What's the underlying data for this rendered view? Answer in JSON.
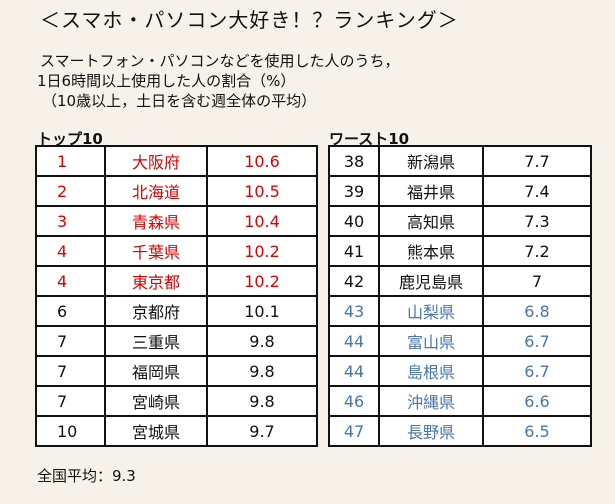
{
  "title": "＜スマホ・パソコン大好き！？ランキング＞",
  "subtitle_lines": [
    "スマートフォン・パソコンなどを使用した人のうち，",
    "1日6時間以上使用した人の割合（%）",
    "（10歳以上，土日を含む週全体の平均）"
  ],
  "top10": {
    "label": "トップ10",
    "highlight_color": "#e00000",
    "rows": [
      {
        "rank": "1",
        "pref": "大阪府",
        "value": "10.6"
      },
      {
        "rank": "2",
        "pref": "北海道",
        "value": "10.5"
      },
      {
        "rank": "3",
        "pref": "青森県",
        "value": "10.4"
      },
      {
        "rank": "4",
        "pref": "千葉県",
        "value": "10.2"
      },
      {
        "rank": "4",
        "pref": "東京都",
        "value": "10.2"
      },
      {
        "rank": "6",
        "pref": "京都府",
        "value": "10.1"
      },
      {
        "rank": "7",
        "pref": "三重県",
        "value": "9.8"
      },
      {
        "rank": "7",
        "pref": "福岡県",
        "value": "9.8"
      },
      {
        "rank": "7",
        "pref": "宮崎県",
        "value": "9.8"
      },
      {
        "rank": "10",
        "pref": "宮城県",
        "value": "9.7"
      }
    ]
  },
  "worst10": {
    "label": "ワースト10",
    "highlight_color": "#4a76ad",
    "rows": [
      {
        "rank": "38",
        "pref": "新潟県",
        "value": "7.7"
      },
      {
        "rank": "39",
        "pref": "福井県",
        "value": "7.4"
      },
      {
        "rank": "40",
        "pref": "高知県",
        "value": "7.3"
      },
      {
        "rank": "41",
        "pref": "熊本県",
        "value": "7.2"
      },
      {
        "rank": "42",
        "pref": "鹿児島県",
        "value": "7"
      },
      {
        "rank": "43",
        "pref": "山梨県",
        "value": "6.8"
      },
      {
        "rank": "44",
        "pref": "富山県",
        "value": "6.7"
      },
      {
        "rank": "44",
        "pref": "島根県",
        "value": "6.7"
      },
      {
        "rank": "46",
        "pref": "沖縄県",
        "value": "6.6"
      },
      {
        "rank": "47",
        "pref": "長野県",
        "value": "6.5"
      }
    ]
  },
  "national_average": "全国平均：9.3"
}
